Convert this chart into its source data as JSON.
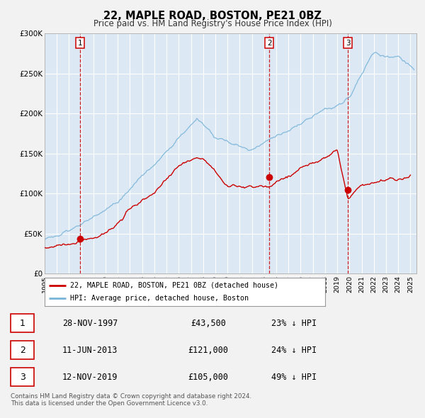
{
  "title": "22, MAPLE ROAD, BOSTON, PE21 0BZ",
  "subtitle": "Price paid vs. HM Land Registry's House Price Index (HPI)",
  "plot_bg_color": "#dce9f5",
  "fig_bg_color": "#f2f2f2",
  "hpi_color": "#7ab4d8",
  "price_color": "#cc0000",
  "marker_color": "#cc0000",
  "vline_color": "#cc0000",
  "ylim": [
    0,
    300000
  ],
  "yticks": [
    0,
    50000,
    100000,
    150000,
    200000,
    250000,
    300000
  ],
  "ytick_labels": [
    "£0",
    "£50K",
    "£100K",
    "£150K",
    "£200K",
    "£250K",
    "£300K"
  ],
  "xmin": 1995.0,
  "xmax": 2025.5,
  "xticks": [
    1995,
    1996,
    1997,
    1998,
    1999,
    2000,
    2001,
    2002,
    2003,
    2004,
    2005,
    2006,
    2007,
    2008,
    2009,
    2010,
    2011,
    2012,
    2013,
    2014,
    2015,
    2016,
    2017,
    2018,
    2019,
    2020,
    2021,
    2022,
    2023,
    2024,
    2025
  ],
  "transactions": [
    {
      "label": "1",
      "date_num": 1997.91,
      "price": 43500
    },
    {
      "label": "2",
      "date_num": 2013.44,
      "price": 121000
    },
    {
      "label": "3",
      "date_num": 2019.87,
      "price": 105000
    }
  ],
  "legend_label_price": "22, MAPLE ROAD, BOSTON, PE21 0BZ (detached house)",
  "legend_label_hpi": "HPI: Average price, detached house, Boston",
  "table_rows": [
    {
      "num": "1",
      "date": "28-NOV-1997",
      "price": "£43,500",
      "pct": "23% ↓ HPI"
    },
    {
      "num": "2",
      "date": "11-JUN-2013",
      "price": "£121,000",
      "pct": "24% ↓ HPI"
    },
    {
      "num": "3",
      "date": "12-NOV-2019",
      "price": "£105,000",
      "pct": "49% ↓ HPI"
    }
  ],
  "footnote": "Contains HM Land Registry data © Crown copyright and database right 2024.\nThis data is licensed under the Open Government Licence v3.0.",
  "hpi_seed": 101,
  "price_seed": 202
}
